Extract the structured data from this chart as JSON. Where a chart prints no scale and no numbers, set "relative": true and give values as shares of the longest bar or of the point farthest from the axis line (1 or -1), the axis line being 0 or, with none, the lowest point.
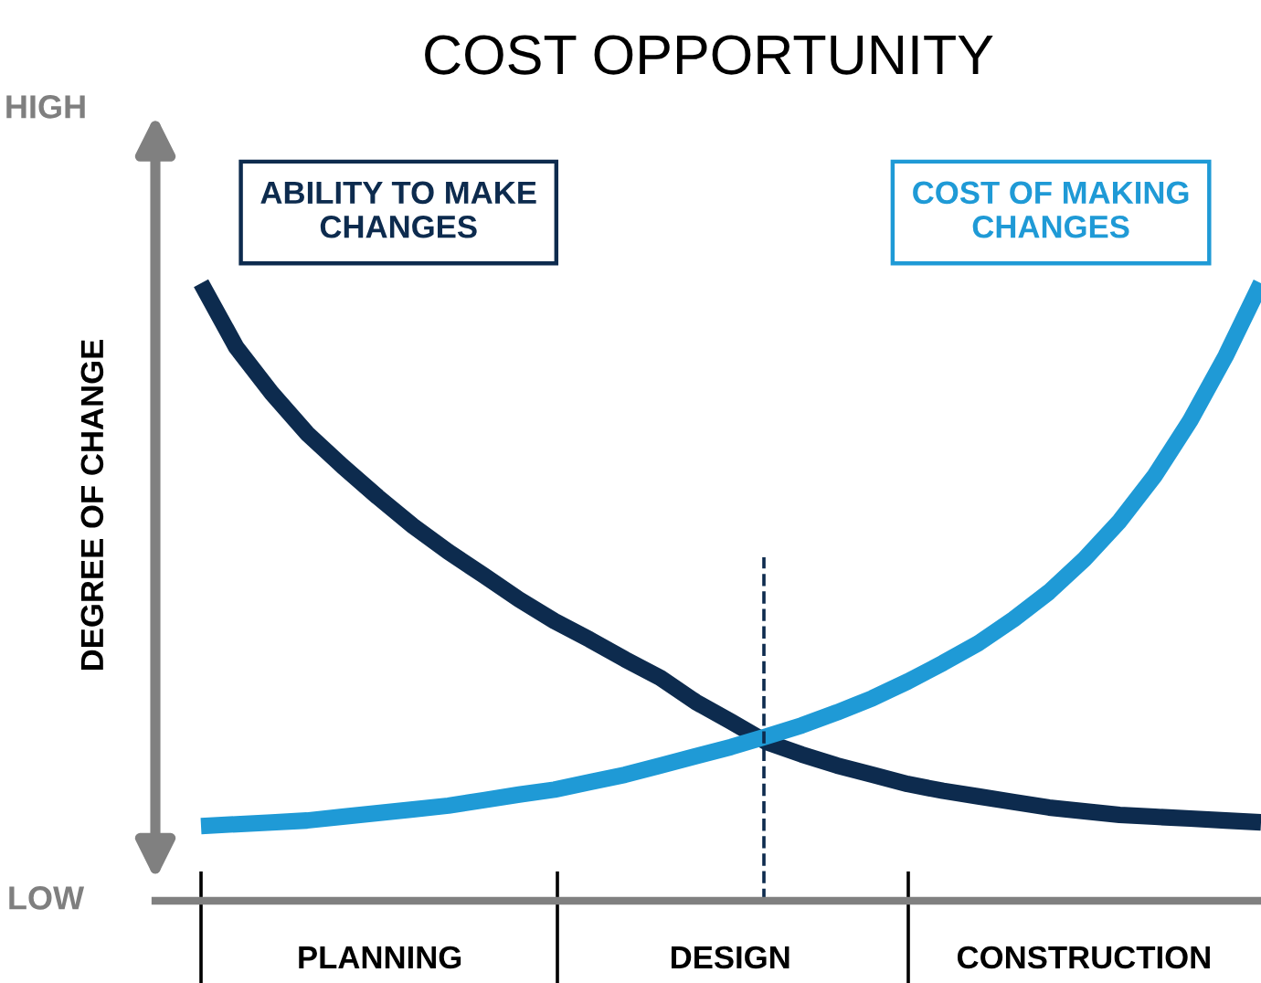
{
  "chart_data": {
    "type": "line",
    "title": "COST OPPORTUNITY",
    "ylabel": "DEGREE OF CHANGE",
    "relative": true,
    "categories": [
      null,
      null,
      null,
      null,
      null,
      null,
      null,
      null,
      null,
      null,
      null,
      null,
      null,
      null,
      null,
      null,
      null,
      null,
      null,
      null,
      null,
      null,
      null,
      null,
      null,
      null,
      null,
      null,
      null,
      null,
      null
    ],
    "series": [
      {
        "name": "ABILITY TO MAKE CHANGES",
        "color": "#0d2b4e",
        "values": [
          1,
          0.896,
          0.822,
          0.757,
          0.704,
          0.654,
          0.607,
          0.565,
          0.527,
          0.488,
          0.453,
          0.423,
          0.391,
          0.361,
          0.322,
          0.29,
          0.257,
          0.237,
          0.219,
          0.204,
          0.189,
          0.178,
          0.169,
          0.16,
          0.151,
          0.145,
          0.139,
          0.136,
          0.133,
          0.13,
          0.127
        ]
      },
      {
        "name": "COST OF MAKING CHANGES",
        "color": "#1f9ad6",
        "values": [
          0.121,
          0.124,
          0.127,
          0.13,
          0.136,
          0.142,
          0.148,
          0.154,
          0.163,
          0.172,
          0.18,
          0.192,
          0.204,
          0.219,
          0.234,
          0.249,
          0.266,
          0.284,
          0.305,
          0.328,
          0.355,
          0.385,
          0.417,
          0.456,
          0.5,
          0.553,
          0.615,
          0.689,
          0.778,
          0.882,
          1
        ]
      }
    ],
    "annotations": [
      "HIGH",
      "LOW",
      "PLANNING",
      "DESIGN",
      "CONSTRUCTION"
    ],
    "legend": false,
    "marker": "none",
    "line_style": "solid"
  }
}
